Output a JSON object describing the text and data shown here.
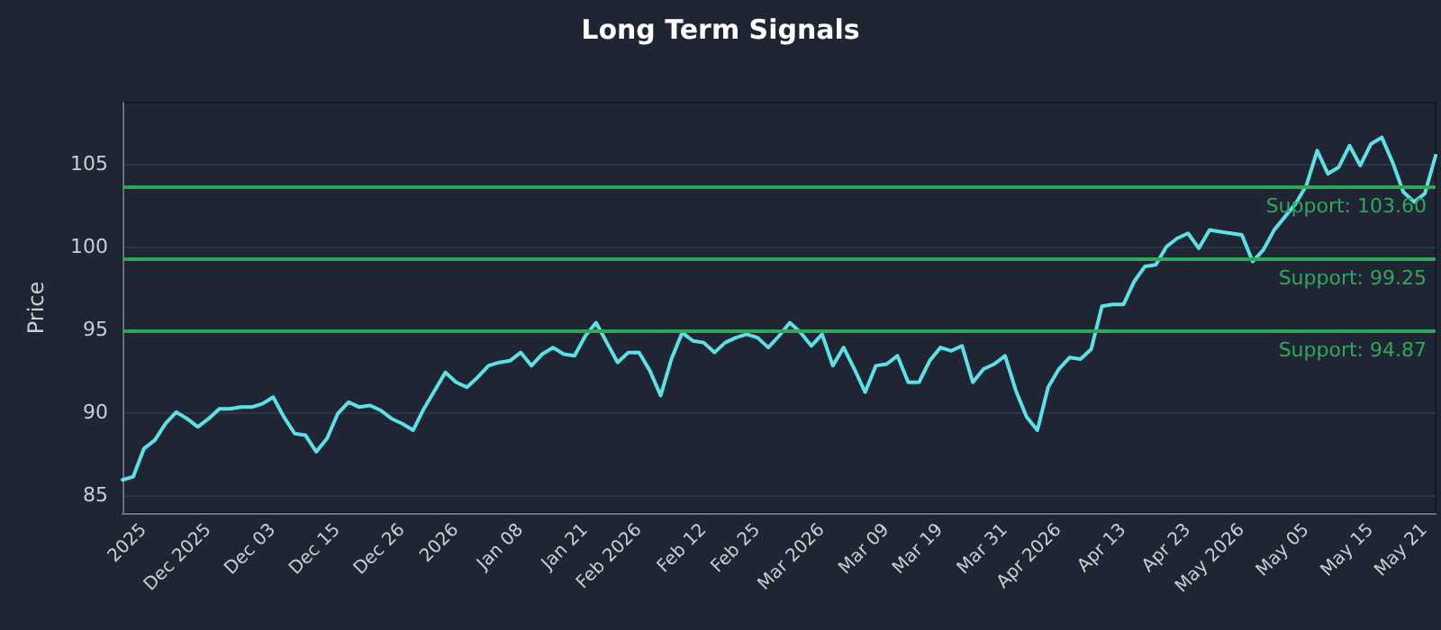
{
  "chart_data": {
    "type": "line",
    "title": "Long Term Signals",
    "ylabel": "Price",
    "categories": [
      null,
      null,
      "2025",
      null,
      null,
      null,
      null,
      null,
      "Dec 2025",
      null,
      null,
      null,
      null,
      null,
      "Dec 03",
      null,
      null,
      null,
      null,
      null,
      "Dec 15",
      null,
      null,
      null,
      null,
      null,
      "Dec 26",
      null,
      null,
      null,
      null,
      "2026",
      null,
      null,
      null,
      null,
      null,
      "Jan 08",
      null,
      null,
      null,
      null,
      null,
      "Jan 21",
      null,
      null,
      null,
      null,
      "Feb 2026",
      null,
      null,
      null,
      null,
      null,
      "Feb 12",
      null,
      null,
      null,
      null,
      "Feb 25",
      null,
      null,
      null,
      null,
      null,
      "Mar 2026",
      null,
      null,
      null,
      null,
      null,
      "Mar 09",
      null,
      null,
      null,
      null,
      "Mar 19",
      null,
      null,
      null,
      null,
      null,
      "Mar 31",
      null,
      null,
      null,
      null,
      "Apr 2026",
      null,
      null,
      null,
      null,
      null,
      "Apr 13",
      null,
      null,
      null,
      null,
      null,
      "Apr 23",
      null,
      null,
      null,
      null,
      "May 2026",
      null,
      null,
      null,
      null,
      null,
      "May 05",
      null,
      null,
      null,
      null,
      null,
      "May 15",
      null,
      null,
      null,
      null,
      "May 21",
      null
    ],
    "series": [
      {
        "color": "#5ce1e6",
        "values": [
          85.9,
          86.1,
          87.8,
          88.3,
          89.3,
          90.0,
          89.6,
          89.1,
          89.6,
          90.2,
          90.2,
          90.3,
          90.3,
          90.5,
          90.9,
          89.7,
          88.7,
          88.6,
          87.6,
          88.4,
          89.9,
          90.6,
          90.3,
          90.4,
          90.1,
          89.6,
          89.3,
          88.9,
          90.2,
          91.3,
          92.4,
          91.8,
          91.5,
          92.1,
          92.8,
          93.0,
          93.1,
          93.6,
          92.8,
          93.5,
          93.9,
          93.5,
          93.4,
          94.6,
          95.4,
          94.2,
          93.0,
          93.6,
          93.6,
          92.5,
          91.0,
          93.2,
          94.8,
          94.3,
          94.2,
          93.6,
          94.2,
          94.5,
          94.7,
          94.5,
          93.9,
          94.6,
          95.4,
          94.8,
          94.0,
          94.7,
          92.8,
          93.9,
          92.6,
          91.2,
          92.8,
          92.9,
          93.4,
          91.8,
          91.8,
          93.1,
          93.9,
          93.7,
          94.0,
          91.8,
          92.6,
          92.9,
          93.4,
          91.3,
          89.7,
          88.9,
          91.5,
          92.6,
          93.3,
          93.2,
          93.8,
          96.4,
          96.5,
          96.5,
          97.9,
          98.8,
          98.9,
          100.0,
          100.5,
          100.8,
          99.9,
          101.0,
          100.9,
          100.8,
          100.7,
          99.1,
          99.8,
          101.0,
          101.8,
          102.6,
          103.7,
          105.8,
          104.4,
          104.8,
          106.1,
          104.9,
          106.2,
          106.6,
          105.1,
          103.3,
          102.7,
          103.2,
          105.5
        ]
      }
    ],
    "ylim": [
      83.9,
      108.7
    ],
    "yticks": [
      85,
      90,
      95,
      100,
      105
    ],
    "grid": "y",
    "marker": "none",
    "line_style": "solid",
    "ref_lines": [
      {
        "axis": "y",
        "value": 103.6,
        "label": "Support: 103.60",
        "color": "#2fa85c"
      },
      {
        "axis": "y",
        "value": 99.25,
        "label": "Support: 99.25",
        "color": "#2fa85c"
      },
      {
        "axis": "y",
        "value": 94.87,
        "label": "Support: 94.87",
        "color": "#2fa85c"
      }
    ]
  }
}
